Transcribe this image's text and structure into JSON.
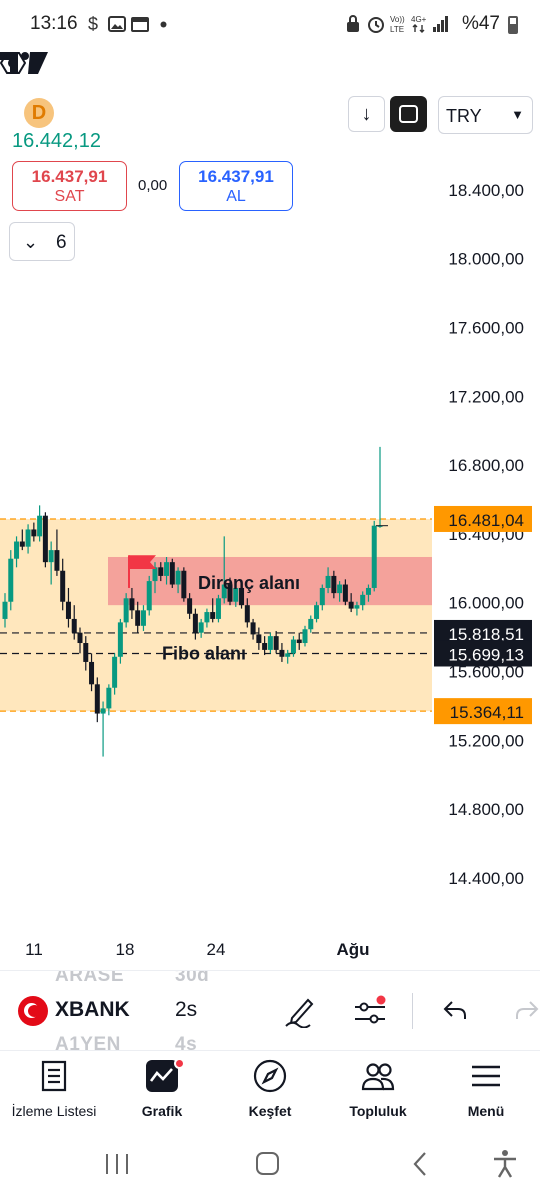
{
  "status_bar": {
    "time": "13:16",
    "icons": [
      "dollar-icon",
      "image-icon",
      "calendar-icon",
      "dot-icon",
      "lock-icon",
      "alarm-icon",
      "volte-icon",
      "4g-icon",
      "signal-icon",
      "battery-icon"
    ],
    "battery": "%47"
  },
  "header": {
    "logo_letter": "D",
    "last_price": "16.442,12",
    "sell_price": "16.437,91",
    "sell_label": "SAT",
    "spread": "0,00",
    "buy_price": "16.437,91",
    "buy_label": "AL",
    "indicator_count": "6",
    "currency": "TRY"
  },
  "chart_data": {
    "type": "candlestick",
    "price_axis": [
      "18.800,00",
      "18.400,00",
      "18.000,00",
      "17.600,00",
      "17.200,00",
      "16.800,00",
      "16.400,00",
      "16.000,00",
      "15.600,00",
      "15.200,00",
      "14.800,00",
      "14.400,00"
    ],
    "price_axis_values": [
      18800,
      18400,
      18000,
      17600,
      17200,
      16800,
      16400,
      16000,
      15600,
      15200,
      14800,
      14400
    ],
    "ylim": [
      14300,
      19000
    ],
    "time_axis": [
      "11",
      "18",
      "24",
      "Ağu"
    ],
    "price_tags": [
      {
        "label": "16.481,04",
        "value": 16481.04,
        "color": "#ff9800"
      },
      {
        "label": "15.818,51",
        "value": 15818.51,
        "color": "#131722"
      },
      {
        "label": "15.699,13",
        "value": 15699.13,
        "color": "#131722"
      },
      {
        "label": "15.364,11",
        "value": 15364.11,
        "color": "#ff9800"
      }
    ],
    "zones": [
      {
        "name": "fibo-zone",
        "from": 15364.11,
        "to": 16481.04,
        "color": "#ffe7bd"
      },
      {
        "name": "resistance-zone",
        "from": 15980,
        "to": 16260,
        "color": "#f4a29b",
        "label": "Direnç alanı"
      }
    ],
    "dashed_lines": [
      15818.51,
      15699.13
    ],
    "zone_labels": {
      "resistance": "Direnç alanı",
      "fibo": "Fibo alanı"
    },
    "up_color": "#089981",
    "down_color": "#131722"
  },
  "symbol_bar": {
    "ghost_top_left": "ARASE",
    "ghost_top_right": "30d",
    "symbol": "XBANK",
    "interval": "2s",
    "ghost_bottom_left": "A1YEN",
    "ghost_bottom_right": "4s"
  },
  "bottom_nav": {
    "items": [
      {
        "label": "İzleme Listesi",
        "icon": "watchlist-icon"
      },
      {
        "label": "Grafik",
        "icon": "chart-icon"
      },
      {
        "label": "Keşfet",
        "icon": "compass-icon"
      },
      {
        "label": "Topluluk",
        "icon": "community-icon"
      },
      {
        "label": "Menü",
        "icon": "menu-icon"
      }
    ]
  }
}
